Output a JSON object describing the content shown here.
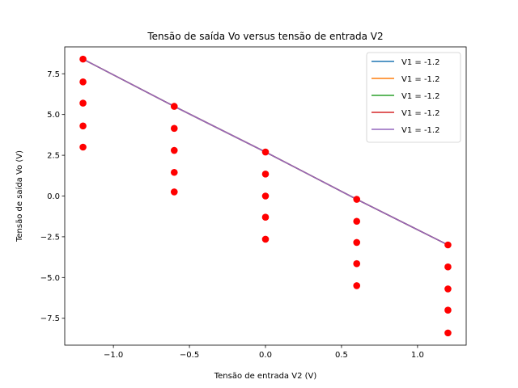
{
  "chart_data": {
    "type": "line",
    "title": "Tensão de saída Vo versus tensão de entrada V2",
    "xlabel": "Tensão de entrada V2 (V)",
    "ylabel": "Tensão de saída Vo (V)",
    "xlim": [
      -1.32,
      1.32
    ],
    "ylim": [
      -9.15,
      9.15
    ],
    "xticks": [
      -1.0,
      -0.5,
      0.0,
      0.5,
      1.0
    ],
    "xtick_labels": [
      "−1.0",
      "−0.5",
      "0.0",
      "0.5",
      "1.0"
    ],
    "yticks": [
      -7.5,
      -5.0,
      -2.5,
      0.0,
      2.5,
      5.0,
      7.5
    ],
    "ytick_labels": [
      "−7.5",
      "−5.0",
      "−2.5",
      "0.0",
      "2.5",
      "5.0",
      "7.5"
    ],
    "grid": false,
    "legend_position": "top-right",
    "x": [
      -1.2,
      -0.6,
      0.0,
      0.6,
      1.2
    ],
    "series": [
      {
        "name": "V1 = -1.2",
        "color": "#1f77b4",
        "values": [
          8.4,
          5.5,
          2.7,
          -0.2,
          -3.0
        ]
      },
      {
        "name": "V1 = -1.2",
        "color": "#ff7f0e",
        "values": [
          8.4,
          5.5,
          2.7,
          -0.2,
          -3.0
        ]
      },
      {
        "name": "V1 = -1.2",
        "color": "#2ca02c",
        "values": [
          8.4,
          5.5,
          2.7,
          -0.2,
          -3.0
        ]
      },
      {
        "name": "V1 = -1.2",
        "color": "#d62728",
        "values": [
          8.4,
          5.5,
          2.7,
          -0.2,
          -3.0
        ]
      },
      {
        "name": "V1 = -1.2",
        "color": "#9467bd",
        "values": [
          8.4,
          5.5,
          2.7,
          -0.2,
          -3.0
        ]
      }
    ],
    "scatter": {
      "color": "#ff0000",
      "points": [
        [
          -1.2,
          8.4
        ],
        [
          -1.2,
          7.0
        ],
        [
          -1.2,
          5.7
        ],
        [
          -1.2,
          4.3
        ],
        [
          -1.2,
          3.0
        ],
        [
          -0.6,
          5.5
        ],
        [
          -0.6,
          4.15
        ],
        [
          -0.6,
          2.8
        ],
        [
          -0.6,
          1.45
        ],
        [
          -0.6,
          0.25
        ],
        [
          0.0,
          2.7
        ],
        [
          0.0,
          1.35
        ],
        [
          0.0,
          0.0
        ],
        [
          0.0,
          -1.3
        ],
        [
          0.0,
          -2.65
        ],
        [
          0.6,
          -0.2
        ],
        [
          0.6,
          -1.55
        ],
        [
          0.6,
          -2.85
        ],
        [
          0.6,
          -4.15
        ],
        [
          0.6,
          -5.5
        ],
        [
          1.2,
          -3.0
        ],
        [
          1.2,
          -4.35
        ],
        [
          1.2,
          -5.7
        ],
        [
          1.2,
          -7.0
        ],
        [
          1.2,
          -8.4
        ]
      ]
    }
  }
}
